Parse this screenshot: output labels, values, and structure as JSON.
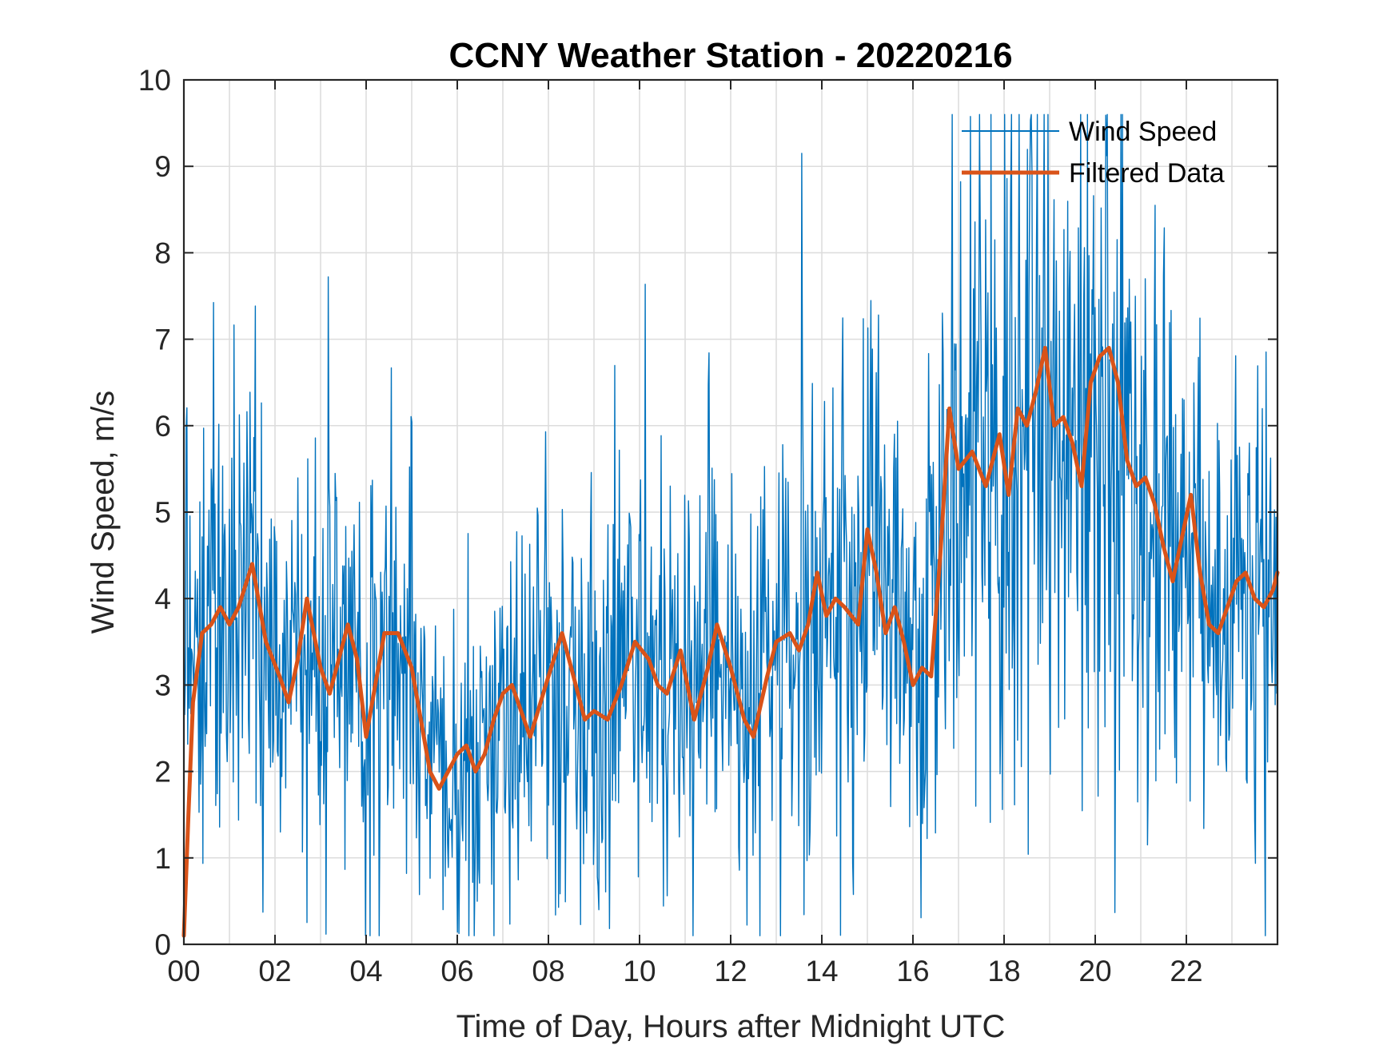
{
  "chart_data": {
    "type": "line",
    "title": "CCNY Weather Station - 20220216",
    "xlabel": "Time of Day, Hours after Midnight UTC",
    "ylabel": "Wind Speed, m/s",
    "xlim": [
      0,
      24
    ],
    "ylim": [
      0,
      10
    ],
    "x_ticks": [
      0,
      2,
      4,
      6,
      8,
      10,
      12,
      14,
      16,
      18,
      20,
      22
    ],
    "x_tick_labels": [
      "00",
      "02",
      "04",
      "06",
      "08",
      "10",
      "12",
      "14",
      "16",
      "18",
      "20",
      "22"
    ],
    "y_ticks": [
      0,
      1,
      2,
      3,
      4,
      5,
      6,
      7,
      8,
      9,
      10
    ],
    "y_tick_labels": [
      "0",
      "1",
      "2",
      "3",
      "4",
      "5",
      "6",
      "7",
      "8",
      "9",
      "10"
    ],
    "x_minor_grid_step": 1,
    "grid": true,
    "legend_position": "top-right",
    "series": [
      {
        "name": "Wind Speed",
        "color": "#0072BD",
        "style": "raw",
        "x": [
          0,
          0.5,
          1,
          1.5,
          2,
          2.5,
          3,
          3.5,
          4,
          4.5,
          5,
          5.5,
          6,
          6.5,
          7,
          7.5,
          8,
          8.5,
          9,
          9.5,
          10,
          10.5,
          11,
          11.5,
          12,
          12.5,
          13,
          13.5,
          14,
          14.5,
          15,
          15.5,
          16,
          16.5,
          17,
          17.5,
          18,
          18.5,
          19,
          19.5,
          20,
          20.5,
          21,
          21.5,
          22,
          22.5,
          23,
          23.5,
          24
        ],
        "values": [
          3.5,
          3.8,
          3.8,
          4.2,
          3.2,
          3.6,
          3.4,
          3.5,
          2.8,
          3.5,
          3.1,
          2.0,
          2.2,
          2.3,
          2.9,
          2.8,
          3.4,
          2.9,
          2.7,
          3.3,
          3.1,
          3.2,
          2.8,
          3.3,
          2.8,
          3.0,
          3.5,
          3.7,
          3.9,
          4.0,
          4.3,
          3.8,
          3.2,
          4.2,
          5.7,
          5.6,
          5.8,
          6.2,
          6.6,
          5.9,
          6.6,
          5.9,
          5.3,
          4.8,
          4.6,
          3.9,
          4.0,
          4.0,
          4.2
        ],
        "min_observed": 0.1,
        "max_observed": 9.6
      },
      {
        "name": "Filtered Data",
        "color": "#D95319",
        "style": "smooth",
        "x": [
          0,
          0.1,
          0.2,
          0.4,
          0.6,
          0.8,
          1.0,
          1.2,
          1.5,
          1.8,
          2.1,
          2.3,
          2.5,
          2.7,
          3.0,
          3.2,
          3.6,
          3.8,
          4.0,
          4.2,
          4.4,
          4.7,
          5.0,
          5.2,
          5.4,
          5.6,
          5.8,
          6.0,
          6.2,
          6.4,
          6.6,
          6.8,
          7.0,
          7.2,
          7.6,
          8.0,
          8.3,
          8.6,
          8.8,
          9.0,
          9.3,
          9.6,
          9.9,
          10.2,
          10.4,
          10.6,
          10.9,
          11.2,
          11.5,
          11.7,
          12.0,
          12.3,
          12.5,
          12.8,
          13.0,
          13.3,
          13.5,
          13.7,
          13.9,
          14.1,
          14.3,
          14.5,
          14.8,
          15.0,
          15.2,
          15.4,
          15.6,
          15.8,
          16.0,
          16.2,
          16.4,
          16.6,
          16.8,
          17.0,
          17.3,
          17.6,
          17.9,
          18.1,
          18.3,
          18.5,
          18.7,
          18.9,
          19.1,
          19.3,
          19.5,
          19.7,
          19.9,
          20.1,
          20.3,
          20.5,
          20.7,
          20.9,
          21.1,
          21.3,
          21.5,
          21.7,
          21.9,
          22.1,
          22.3,
          22.5,
          22.7,
          22.9,
          23.1,
          23.3,
          23.5,
          23.7,
          23.9,
          24.0
        ],
        "values": [
          0.1,
          1.5,
          2.8,
          3.6,
          3.7,
          3.9,
          3.7,
          3.9,
          4.4,
          3.5,
          3.1,
          2.8,
          3.3,
          4.0,
          3.2,
          2.9,
          3.7,
          3.3,
          2.4,
          3.0,
          3.6,
          3.6,
          3.2,
          2.6,
          2.0,
          1.8,
          2.0,
          2.2,
          2.3,
          2.0,
          2.2,
          2.6,
          2.9,
          3.0,
          2.4,
          3.1,
          3.6,
          3.0,
          2.6,
          2.7,
          2.6,
          3.0,
          3.5,
          3.3,
          3.0,
          2.9,
          3.4,
          2.6,
          3.2,
          3.7,
          3.2,
          2.6,
          2.4,
          3.1,
          3.5,
          3.6,
          3.4,
          3.7,
          4.3,
          3.8,
          4.0,
          3.9,
          3.7,
          4.8,
          4.3,
          3.6,
          3.9,
          3.5,
          3.0,
          3.2,
          3.1,
          4.5,
          6.2,
          5.5,
          5.7,
          5.3,
          5.9,
          5.2,
          6.2,
          6.0,
          6.4,
          6.9,
          6.0,
          6.1,
          5.8,
          5.3,
          6.5,
          6.8,
          6.9,
          6.5,
          5.6,
          5.3,
          5.4,
          5.1,
          4.6,
          4.2,
          4.7,
          5.2,
          4.3,
          3.7,
          3.6,
          3.9,
          4.2,
          4.3,
          4.0,
          3.9,
          4.1,
          4.3
        ]
      }
    ]
  }
}
